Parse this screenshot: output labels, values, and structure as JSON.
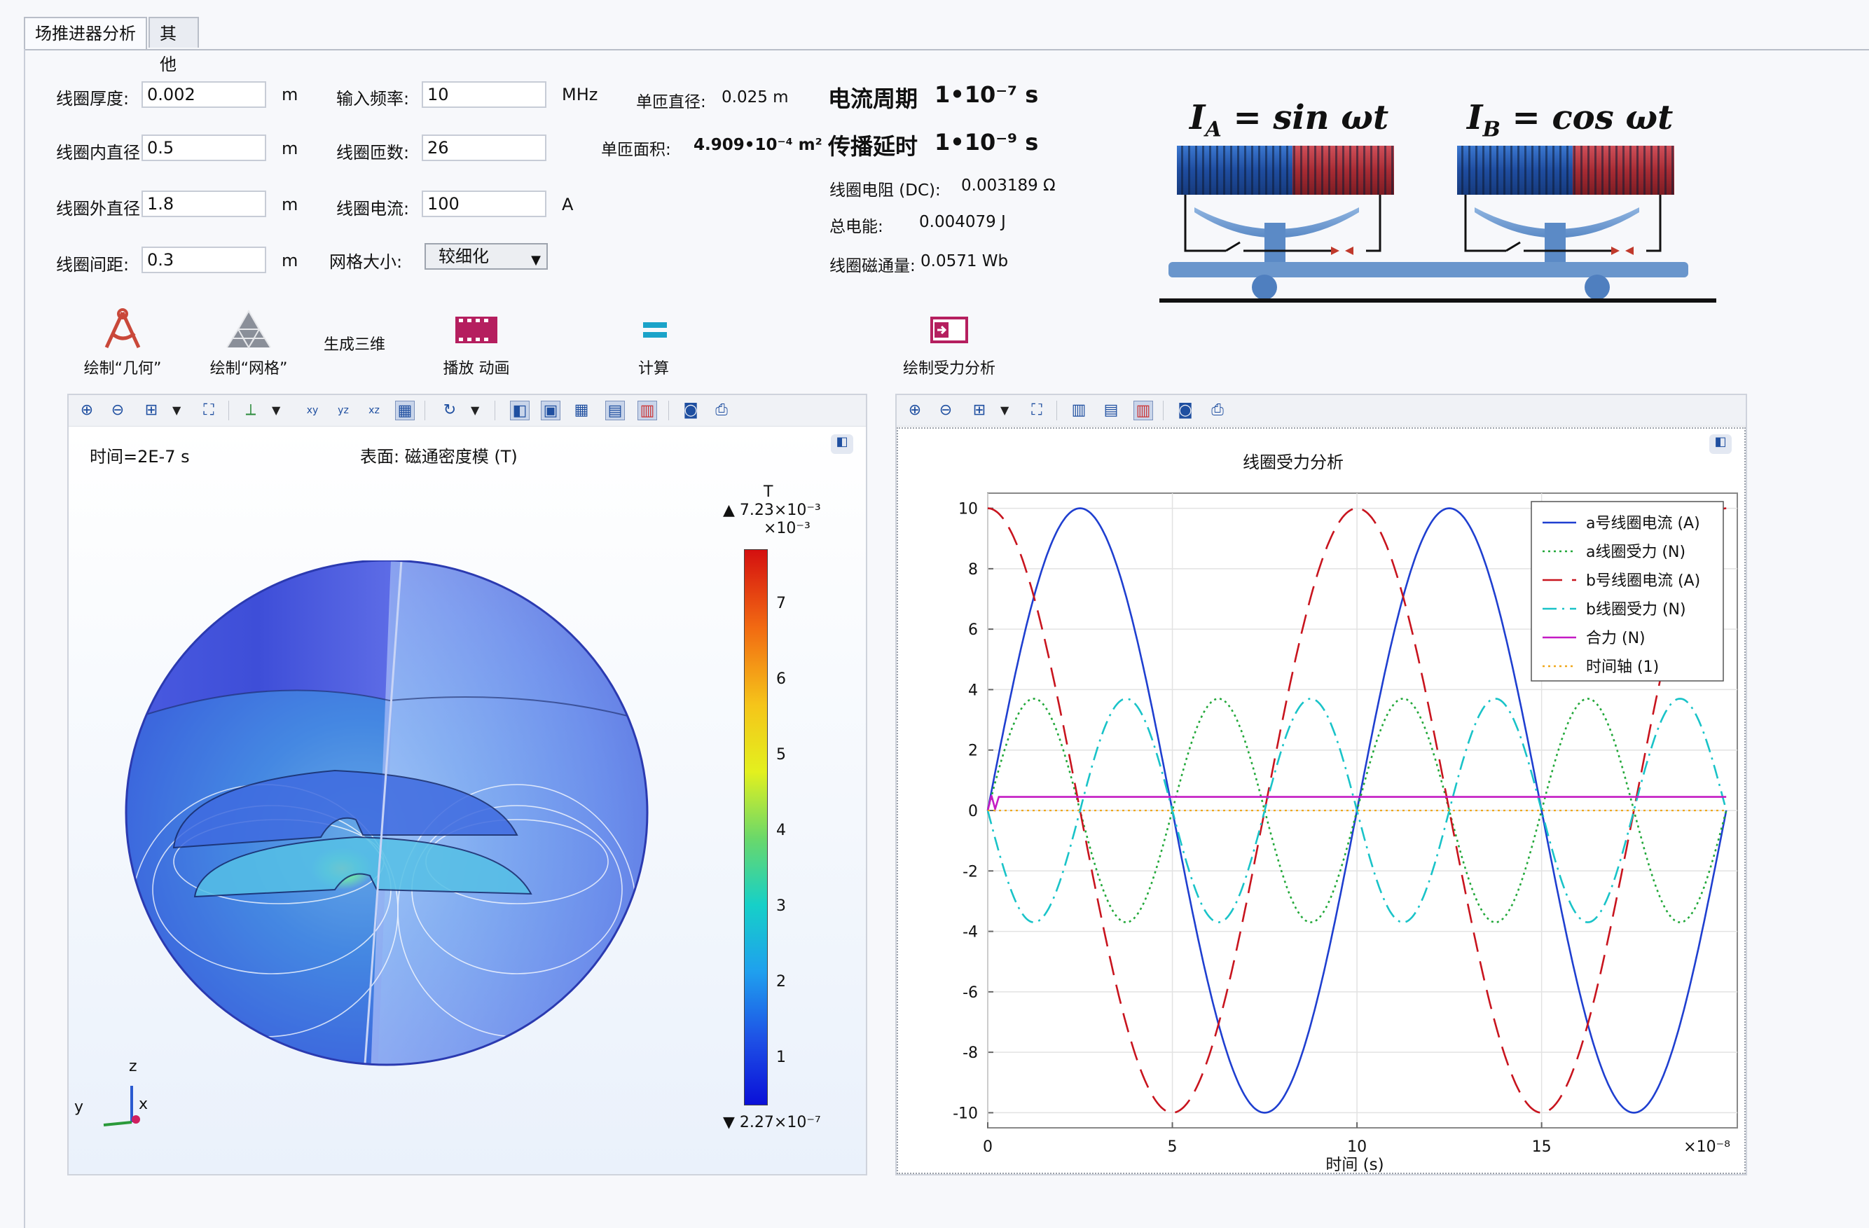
{
  "tabs": [
    {
      "label": "场推进器分析",
      "active": true
    },
    {
      "label": "其他",
      "active": false
    }
  ],
  "form": {
    "thickness_label": "线圈厚度:",
    "thickness_value": "0.002",
    "thickness_unit": "m",
    "inner_label": "线圈内直径:",
    "inner_value": "0.5",
    "inner_unit": "m",
    "outer_label": "线圈外直径:",
    "outer_value": "1.8",
    "outer_unit": "m",
    "gap_label": "线圈间距:",
    "gap_value": "0.3",
    "gap_unit": "m",
    "freq_label": "输入频率:",
    "freq_value": "10",
    "freq_unit": "MHz",
    "turns_label": "线圈匝数:",
    "turns_value": "26",
    "current_label": "线圈电流:",
    "current_value": "100",
    "current_unit": "A",
    "mesh_label": "网格大小:",
    "mesh_value": "较细化"
  },
  "results": {
    "turn_diam_label": "单匝直径:",
    "turn_diam_value": "0.025 m",
    "turn_area_label": "单匝面积:",
    "turn_area_value": "4.909•10⁻⁴ m²",
    "period_label": "电流周期",
    "period_value": "1•10⁻⁷ s",
    "delay_label": "传播延时",
    "delay_value": "1•10⁻⁹ s",
    "resistance_label": "线圈电阻 (DC):",
    "resistance_value": "0.003189 Ω",
    "energy_label": "总电能:",
    "energy_value": "0.004079 J",
    "flux_label": "线圈磁通量:",
    "flux_value": "0.0571 Wb"
  },
  "diagram": {
    "formula_a": "I_A = sin ωt",
    "formula_a_main": "I",
    "formula_a_sub": "A",
    "formula_a_rest": " = sin ωt",
    "formula_b_main": "I",
    "formula_b_sub": "B",
    "formula_b_rest": " = cos ωt",
    "color_blue": "#2f64b8",
    "color_red": "#b8343a"
  },
  "toolbar": {
    "draw_geometry": "绘制“几何”",
    "draw_mesh": "绘制“网格”",
    "generate_3d": "生成三维",
    "play_animation": "播放 动画",
    "compute": "计算",
    "draw_force": "绘制受力分析"
  },
  "plot3d": {
    "time_text": "时间=2E-7 s",
    "surface_text": "表面: 磁通密度模 (T)",
    "colorbar_unit": "T",
    "colorbar_max": "▲ 7.23×10⁻³",
    "colorbar_scale": "×10⁻³",
    "colorbar_min": "▼ 2.27×10⁻⁷",
    "colorbar_ticks": [
      "7",
      "6",
      "5",
      "4",
      "3",
      "2",
      "1"
    ],
    "axis_z": "z",
    "axis_y": "y",
    "axis_x": "x"
  },
  "chart_data": {
    "type": "line",
    "title": "线圈受力分析",
    "xlabel": "时间 (s)",
    "x_multiplier": "×10⁻⁸",
    "xlim": [
      0,
      20.3
    ],
    "ylim": [
      -10.5,
      10.5
    ],
    "xticks": [
      "0",
      "5",
      "10",
      "15"
    ],
    "yticks": [
      "10",
      "8",
      "6",
      "4",
      "2",
      "0",
      "-2",
      "-4",
      "-6",
      "-8",
      "-10"
    ],
    "grid": true,
    "legend_position": "top-right",
    "series": [
      {
        "name": "a号线圈电流 (A)",
        "color": "#1f3fd0",
        "dash": "solid",
        "formula": "10*sin(2*pi*t/10)"
      },
      {
        "name": "a线圈受力 (N)",
        "color": "#22a83a",
        "dash": "dotted",
        "formula": "3.7*|sin(2*pi*t/5)| ~ sin(2*pi*t/5)"
      },
      {
        "name": "b号线圈电流 (A)",
        "color": "#c8141e",
        "dash": "dashed",
        "formula": "10*cos(2*pi*t/10)"
      },
      {
        "name": "b线圈受力 (N)",
        "color": "#19c3c8",
        "dash": "dashdot",
        "formula": "-sin(2*pi*t/5)"
      },
      {
        "name": "合力 (N)",
        "color": "#c41bc4",
        "dash": "solid",
        "formula": "0.45"
      },
      {
        "name": "时间轴 (1)",
        "color": "#f0a81c",
        "dash": "dotted",
        "formula": "0"
      }
    ],
    "series_points": {
      "x": [
        0,
        0.5,
        1,
        1.25,
        1.5,
        2,
        2.5,
        3,
        3.5,
        3.75,
        4,
        4.5,
        5,
        5.5,
        6,
        6.25,
        6.5,
        7,
        7.5,
        8,
        8.5,
        8.75,
        9,
        9.5,
        10,
        10.5,
        11,
        11.25,
        11.5,
        12,
        12.5,
        13,
        13.5,
        13.75,
        14,
        14.5,
        15,
        15.5,
        16,
        16.25,
        16.5,
        17,
        17.5,
        18,
        18.5,
        18.75,
        19,
        19.5,
        20
      ],
      "a_current": [
        0,
        3.09,
        5.88,
        7.07,
        8.09,
        9.51,
        10,
        9.51,
        8.09,
        7.07,
        5.88,
        3.09,
        0,
        -3.09,
        -5.88,
        -7.07,
        -8.09,
        -9.51,
        -10,
        -9.51,
        -8.09,
        -7.07,
        -5.88,
        -3.09,
        0,
        3.09,
        5.88,
        7.07,
        8.09,
        9.51,
        10,
        9.51,
        8.09,
        7.07,
        5.88,
        3.09,
        0,
        -3.09,
        -5.88,
        -7.07,
        -8.09,
        -9.51,
        -10,
        -9.51,
        -8.09,
        -7.07,
        -5.88,
        -3.09,
        0
      ],
      "a_force": [
        0,
        2.17,
        3.52,
        3.7,
        3.52,
        2.17,
        0,
        -2.17,
        -3.52,
        -3.7,
        -3.52,
        -2.17,
        0,
        2.17,
        3.52,
        3.7,
        3.52,
        2.17,
        0,
        -2.17,
        -3.52,
        -3.7,
        -3.52,
        -2.17,
        0,
        2.17,
        3.52,
        3.7,
        3.52,
        2.17,
        0,
        -2.17,
        -3.52,
        -3.7,
        -3.52,
        -2.17,
        0,
        2.17,
        3.52,
        3.7,
        3.52,
        2.17,
        0,
        -2.17,
        -3.52,
        -3.7,
        -3.52,
        -2.17,
        0
      ],
      "b_current": [
        10,
        9.51,
        8.09,
        7.07,
        5.88,
        3.09,
        0,
        -3.09,
        -5.88,
        -7.07,
        -8.09,
        -9.51,
        -10,
        -9.51,
        -8.09,
        -7.07,
        -5.88,
        -3.09,
        0,
        3.09,
        5.88,
        7.07,
        8.09,
        9.51,
        10,
        9.51,
        8.09,
        7.07,
        5.88,
        3.09,
        0,
        -3.09,
        -5.88,
        -7.07,
        -8.09,
        -9.51,
        -10,
        -9.51,
        -8.09,
        -7.07,
        -5.88,
        -3.09,
        0,
        3.09,
        5.88,
        7.07,
        8.09,
        9.51,
        10
      ],
      "b_force": [
        0,
        -2.17,
        -3.52,
        -3.7,
        -3.52,
        -2.17,
        0,
        2.17,
        3.52,
        3.7,
        3.52,
        2.17,
        0,
        -2.17,
        -3.52,
        -3.7,
        -3.52,
        -2.17,
        0,
        2.17,
        3.52,
        3.7,
        3.52,
        2.17,
        0,
        -2.17,
        -3.52,
        -3.7,
        -3.52,
        -2.17,
        0,
        2.17,
        3.52,
        3.7,
        3.52,
        2.17,
        0,
        -2.17,
        -3.52,
        -3.7,
        -3.52,
        -2.17,
        0,
        2.17,
        3.52,
        3.7,
        3.52,
        2.17,
        0
      ],
      "total_force": 0.45,
      "time_axis": 0
    }
  }
}
